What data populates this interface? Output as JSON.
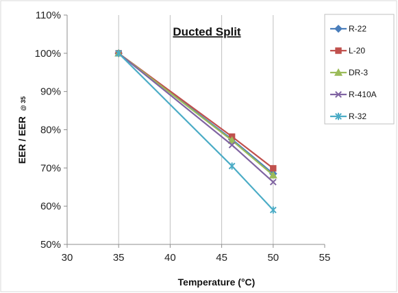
{
  "chart_data": {
    "type": "line",
    "title": "Ducted Split",
    "xlabel": "Temperature (°C)",
    "ylabel": "EER / EER",
    "ylabel_sub": "@ 35",
    "xlim": [
      30,
      55
    ],
    "ylim": [
      50,
      110
    ],
    "x_ticks": [
      {
        "value": 30,
        "label": "30"
      },
      {
        "value": 35,
        "label": "35"
      },
      {
        "value": 40,
        "label": "40"
      },
      {
        "value": 45,
        "label": "45"
      },
      {
        "value": 50,
        "label": "50"
      },
      {
        "value": 55,
        "label": "55"
      }
    ],
    "y_ticks": [
      {
        "value": 50,
        "label": "50%"
      },
      {
        "value": 60,
        "label": "60%"
      },
      {
        "value": 70,
        "label": "70%"
      },
      {
        "value": 80,
        "label": "80%"
      },
      {
        "value": 90,
        "label": "90%"
      },
      {
        "value": 100,
        "label": "100%"
      },
      {
        "value": 110,
        "label": "110%"
      }
    ],
    "grid": "vertical",
    "legend_position": "top-right",
    "series": [
      {
        "name": "R-22",
        "marker": "diamond",
        "color": "#4a7ebb",
        "x": [
          35,
          46,
          50
        ],
        "y": [
          100,
          77.5,
          68.5
        ]
      },
      {
        "name": "L-20",
        "marker": "square",
        "color": "#c0504d",
        "x": [
          35,
          46,
          50
        ],
        "y": [
          100,
          78.2,
          69.9
        ]
      },
      {
        "name": "DR-3",
        "marker": "triangle",
        "color": "#9bbb59",
        "x": [
          35,
          46,
          50
        ],
        "y": [
          100,
          77.2,
          68.1
        ]
      },
      {
        "name": "R-410A",
        "marker": "x",
        "color": "#8064a2",
        "x": [
          35,
          46,
          50
        ],
        "y": [
          100,
          76.0,
          66.3
        ]
      },
      {
        "name": "R-32",
        "marker": "star",
        "color": "#4bacc6",
        "x": [
          35,
          46,
          50
        ],
        "y": [
          100,
          70.5,
          59.0
        ]
      }
    ]
  }
}
